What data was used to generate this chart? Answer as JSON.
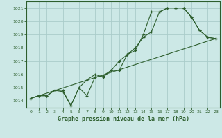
{
  "bg_color": "#cce8e6",
  "grid_color": "#aaccca",
  "line_color": "#2d5e2d",
  "xlabel": "Graphe pression niveau de la mer (hPa)",
  "ylim": [
    1013.5,
    1021.5
  ],
  "xlim": [
    -0.5,
    23.5
  ],
  "yticks": [
    1014,
    1015,
    1016,
    1017,
    1018,
    1019,
    1020,
    1021
  ],
  "xticks": [
    0,
    1,
    2,
    3,
    4,
    5,
    6,
    7,
    8,
    9,
    10,
    11,
    12,
    13,
    14,
    15,
    16,
    17,
    18,
    19,
    20,
    21,
    22,
    23
  ],
  "line1_x": [
    0,
    1,
    2,
    3,
    4,
    5,
    6,
    7,
    8,
    9,
    10,
    11,
    12,
    13,
    14,
    15,
    16,
    17,
    18,
    19,
    20,
    21,
    22,
    23
  ],
  "line1_y": [
    1014.2,
    1014.4,
    1014.4,
    1014.8,
    1014.8,
    1013.65,
    1015.0,
    1014.4,
    1015.8,
    1015.9,
    1016.3,
    1016.3,
    1017.5,
    1018.0,
    1018.8,
    1019.2,
    1020.7,
    1021.0,
    1021.0,
    1021.0,
    1020.3,
    1019.3,
    1018.8,
    1018.7
  ],
  "line2_x": [
    0,
    1,
    2,
    3,
    4,
    5,
    6,
    7,
    8,
    9,
    10,
    11,
    12,
    13,
    14,
    15,
    16,
    17,
    18,
    19,
    20,
    21,
    22,
    23
  ],
  "line2_y": [
    1014.2,
    1014.4,
    1014.4,
    1014.8,
    1014.7,
    1013.65,
    1015.0,
    1015.6,
    1016.0,
    1015.8,
    1016.3,
    1017.0,
    1017.5,
    1017.8,
    1019.0,
    1020.7,
    1020.7,
    1021.0,
    1021.0,
    1021.0,
    1020.3,
    1019.3,
    1018.8,
    1018.7
  ],
  "line3_x": [
    0,
    23
  ],
  "line3_y": [
    1014.2,
    1018.7
  ],
  "title_fontsize": 6,
  "tick_fontsize": 5,
  "xlabel_fontsize": 6
}
